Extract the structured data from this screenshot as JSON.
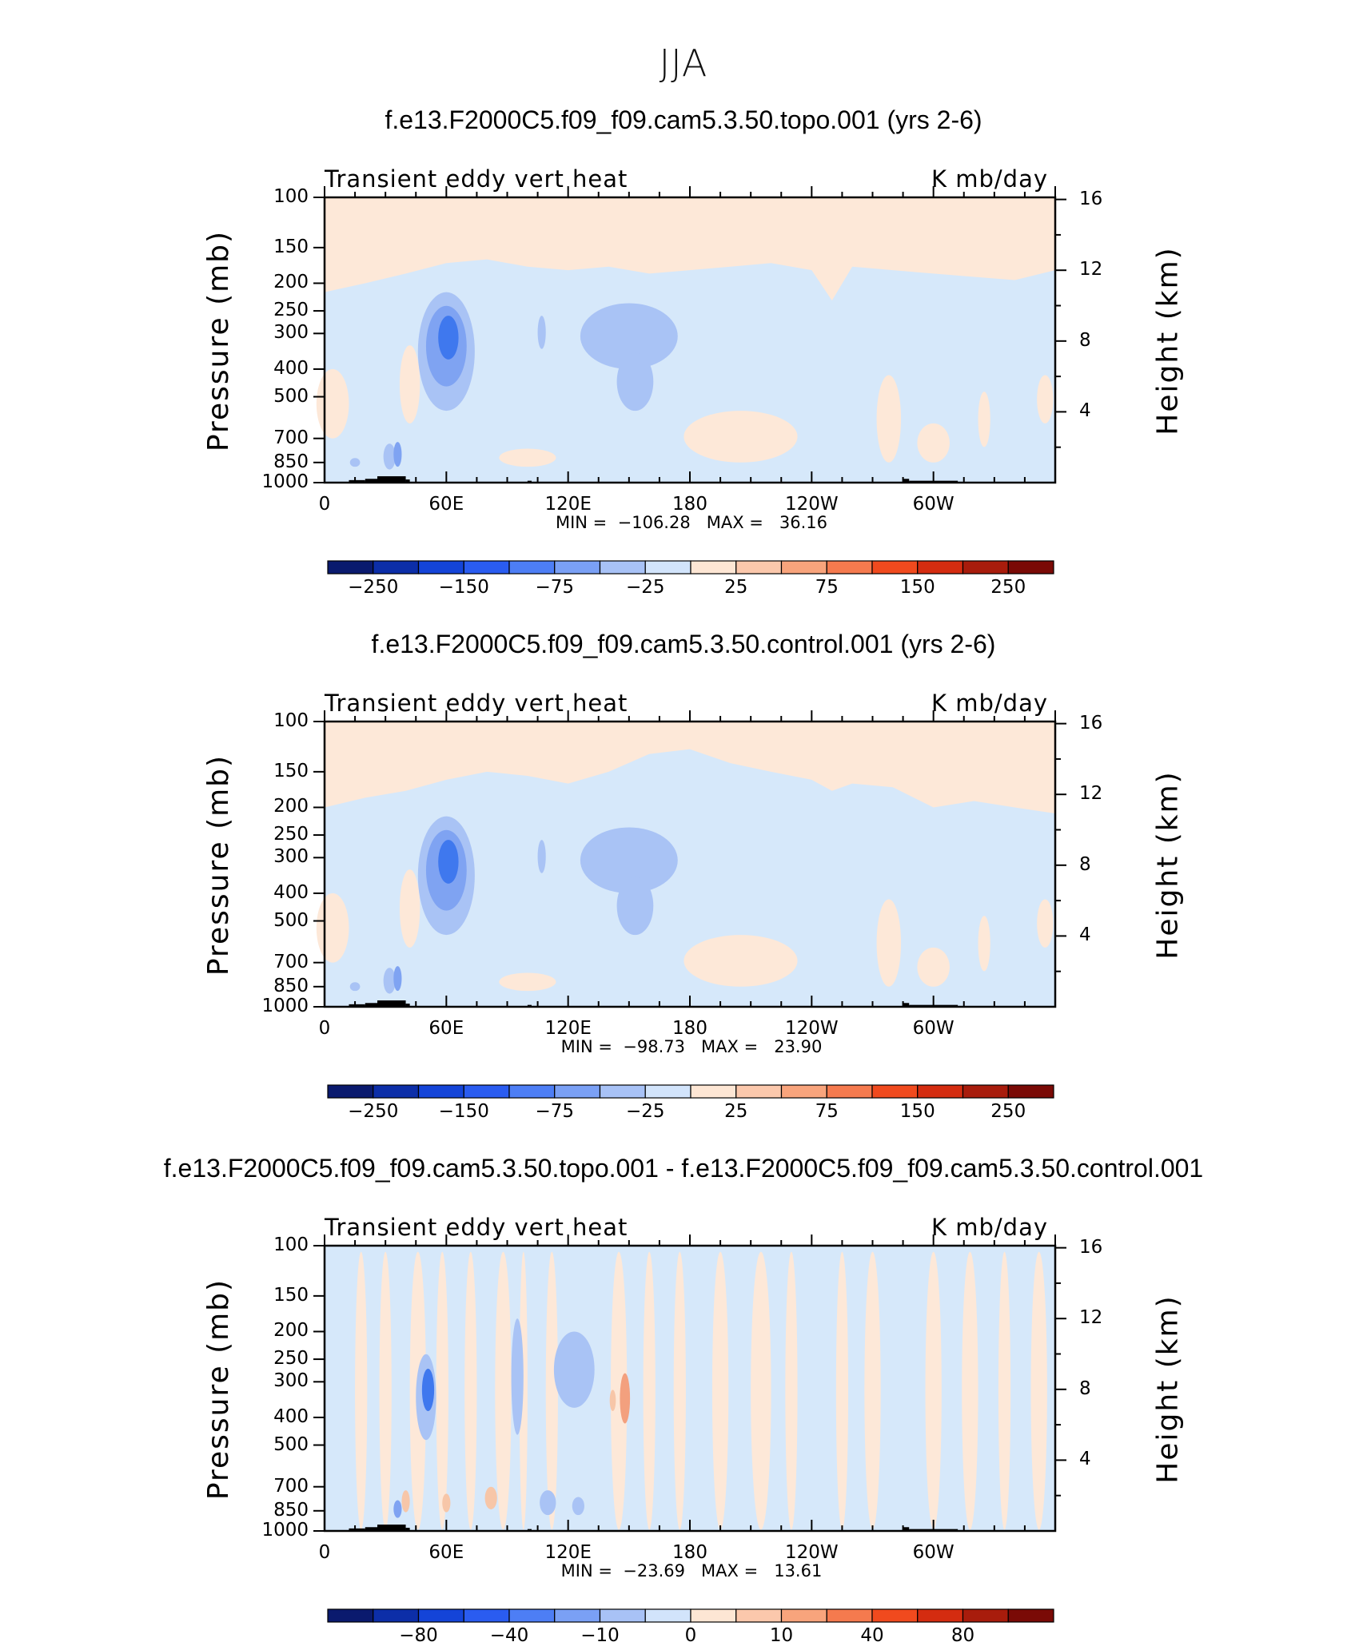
{
  "title": "JJA",
  "chart_data": [
    {
      "type": "heatmap",
      "title": "f.e13.F2000C5.f09_f09.cam5.3.50.topo.001 (yrs 2-6)",
      "left_string": "Transient eddy vert heat",
      "right_string": "K mb/day",
      "ylabel": "Pressure (mb)",
      "ylabel_right": "Height (km)",
      "x_ticks": [
        "0",
        "60E",
        "120E",
        "180",
        "120W",
        "60W"
      ],
      "y_ticks": [
        "100",
        "150",
        "200",
        "250",
        "300",
        "400",
        "500",
        "700",
        "850",
        "1000"
      ],
      "y_right_ticks": [
        "16",
        "12",
        "8",
        "4"
      ],
      "min_max": "MIN =  −106.28   MAX =   36.16",
      "colorbar_labels": [
        "−250",
        "−150",
        "−75",
        "−25",
        "25",
        "75",
        "150",
        "250"
      ],
      "field_summary": {
        "min": -106.28,
        "max": 36.16,
        "min_location": "60E, 300 mb"
      }
    },
    {
      "type": "heatmap",
      "title": "f.e13.F2000C5.f09_f09.cam5.3.50.control.001 (yrs 2-6)",
      "left_string": "Transient eddy vert heat",
      "right_string": "K mb/day",
      "ylabel": "Pressure (mb)",
      "ylabel_right": "Height (km)",
      "x_ticks": [
        "0",
        "60E",
        "120E",
        "180",
        "120W",
        "60W"
      ],
      "y_ticks": [
        "100",
        "150",
        "200",
        "250",
        "300",
        "400",
        "500",
        "700",
        "850",
        "1000"
      ],
      "y_right_ticks": [
        "16",
        "12",
        "8",
        "4"
      ],
      "min_max": "MIN =  −98.73   MAX =   23.90",
      "colorbar_labels": [
        "−250",
        "−150",
        "−75",
        "−25",
        "25",
        "75",
        "150",
        "250"
      ],
      "field_summary": {
        "min": -98.73,
        "max": 23.9,
        "min_location": "60E, 300 mb"
      }
    },
    {
      "type": "heatmap",
      "title": "f.e13.F2000C5.f09_f09.cam5.3.50.topo.001 - f.e13.F2000C5.f09_f09.cam5.3.50.control.001",
      "left_string": "Transient eddy vert heat",
      "right_string": "K mb/day",
      "ylabel": "Pressure (mb)",
      "ylabel_right": "Height (km)",
      "x_ticks": [
        "0",
        "60E",
        "120E",
        "180",
        "120W",
        "60W"
      ],
      "y_ticks": [
        "100",
        "150",
        "200",
        "250",
        "300",
        "400",
        "500",
        "700",
        "850",
        "1000"
      ],
      "y_right_ticks": [
        "16",
        "12",
        "8",
        "4"
      ],
      "min_max": "MIN =  −23.69   MAX =   13.61",
      "colorbar_labels": [
        "−80",
        "−40",
        "−10",
        "0",
        "10",
        "40",
        "80"
      ],
      "field_summary": {
        "min": -23.69,
        "max": 13.61,
        "min_location": "50E, 300 mb"
      }
    }
  ],
  "colors": {
    "colorbar": [
      "#0a1a6e",
      "#0c2ea8",
      "#1444d8",
      "#2a5cf0",
      "#4d7ef5",
      "#7aa0f5",
      "#a8c2f6",
      "#d2e4fb",
      "#fde6d4",
      "#fbc8ac",
      "#f8a47c",
      "#f57a4e",
      "#f04a1e",
      "#d42c10",
      "#a81c0c",
      "#7a0a06"
    ],
    "light_blue": "#d6e8fa",
    "light_orange": "#fde8d8",
    "mid_blue": "#a9c3f5",
    "blue": "#7fa3f2",
    "dark_blue": "#3f78ee",
    "orange": "#f7c6a8",
    "dark_orange": "#f3a07e",
    "topography": "#000000"
  }
}
